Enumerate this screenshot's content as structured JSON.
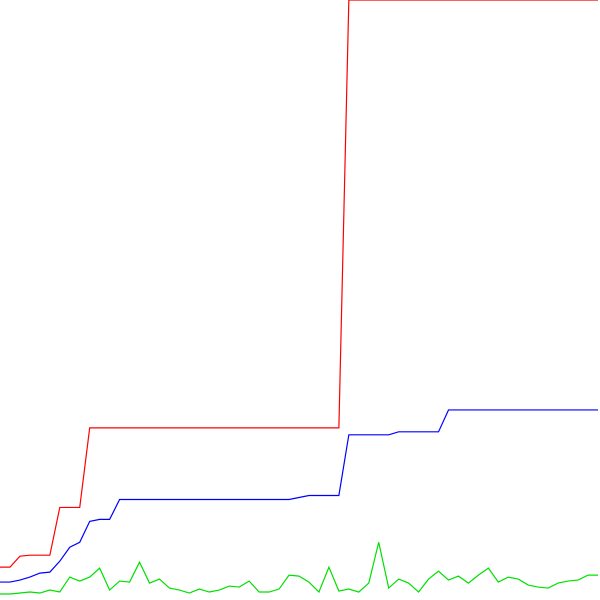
{
  "chart_data": {
    "type": "line",
    "title": "",
    "xlabel": "",
    "ylabel": "",
    "grid": false,
    "legend": "none",
    "xlim": [
      0,
      60
    ],
    "ylim": [
      0,
      600
    ],
    "x": [
      0,
      1,
      2,
      3,
      4,
      5,
      6,
      7,
      8,
      9,
      10,
      11,
      12,
      13,
      14,
      15,
      16,
      17,
      18,
      19,
      20,
      21,
      22,
      23,
      24,
      25,
      26,
      27,
      28,
      29,
      30,
      31,
      32,
      33,
      34,
      35,
      36,
      37,
      38,
      39,
      40,
      41,
      42,
      43,
      44,
      45,
      46,
      47,
      48,
      49,
      50,
      51,
      52,
      53,
      54,
      55,
      56,
      57,
      58,
      59,
      60
    ],
    "series": [
      {
        "color": "#ff0000",
        "values": [
          30,
          30,
          41,
          42,
          42,
          42,
          90,
          90,
          90,
          170,
          170,
          170,
          170,
          170,
          170,
          170,
          170,
          170,
          170,
          170,
          170,
          170,
          170,
          170,
          170,
          170,
          170,
          170,
          170,
          170,
          170,
          170,
          170,
          170,
          170,
          600,
          600,
          600,
          600,
          600,
          600,
          600,
          600,
          600,
          600,
          600,
          600,
          600,
          600,
          600,
          600,
          600,
          600,
          600,
          600,
          600,
          600,
          600,
          600,
          600,
          600
        ]
      },
      {
        "color": "#0000ff",
        "values": [
          15,
          15,
          17,
          20,
          24,
          25,
          36,
          50,
          55,
          76,
          78,
          78,
          98,
          98,
          98,
          98,
          98,
          98,
          98,
          98,
          98,
          98,
          98,
          98,
          98,
          98,
          98,
          98,
          98,
          98,
          100,
          102,
          102,
          102,
          102,
          163,
          163,
          163,
          163,
          163,
          166,
          166,
          166,
          166,
          166,
          188,
          188,
          188,
          188,
          188,
          188,
          188,
          188,
          188,
          188,
          188,
          188,
          188,
          188,
          188,
          188
        ]
      },
      {
        "color": "#00e000",
        "values": [
          3,
          3,
          4,
          5,
          4,
          7,
          5,
          20,
          16,
          20,
          29,
          7,
          16,
          15,
          35,
          14,
          18,
          9,
          7,
          4,
          8,
          5,
          7,
          11,
          10,
          16,
          5,
          5,
          8,
          22,
          21,
          15,
          5,
          30,
          6,
          8,
          5,
          14,
          55,
          9,
          18,
          14,
          5,
          18,
          26,
          17,
          21,
          14,
          22,
          29,
          15,
          20,
          18,
          12,
          10,
          9,
          14,
          16,
          17,
          22,
          22
        ]
      }
    ]
  }
}
